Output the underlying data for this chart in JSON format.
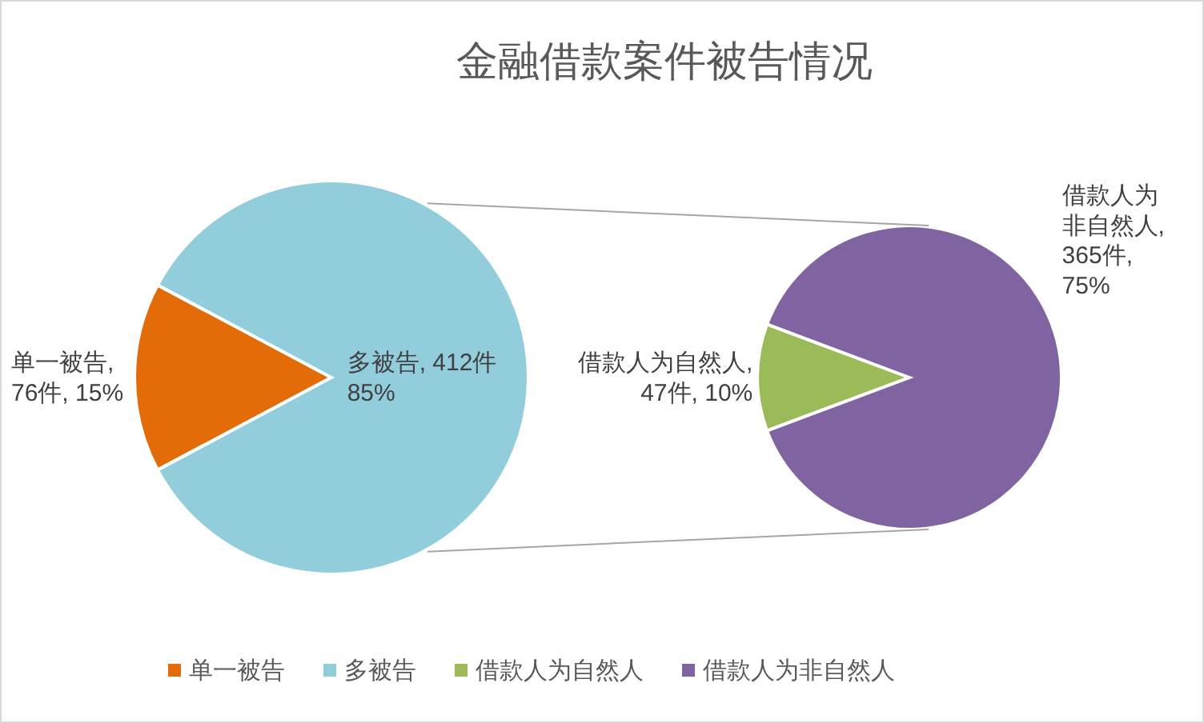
{
  "chart_data": [
    {
      "type": "pie",
      "title": "金融借款案件被告情况",
      "categories": [
        "单一被告",
        "多被告"
      ],
      "values": [
        76,
        412
      ],
      "colors": [
        "#e36c09",
        "#92cddc"
      ],
      "value_labels": [
        "单一被告,\n76件, 15%",
        "多被告, 412件\n85%"
      ],
      "legend": "bottom"
    },
    {
      "type": "pie",
      "categories": [
        "借款人为自然人",
        "借款人为非自然人"
      ],
      "values": [
        47,
        365
      ],
      "colors": [
        "#9bbb59",
        "#8064a2"
      ],
      "value_labels": [
        "借款人为自然人,\n47件, 10%",
        "借款人为非自然人,\n365件,\n75%"
      ],
      "legend": "bottom"
    }
  ]
}
